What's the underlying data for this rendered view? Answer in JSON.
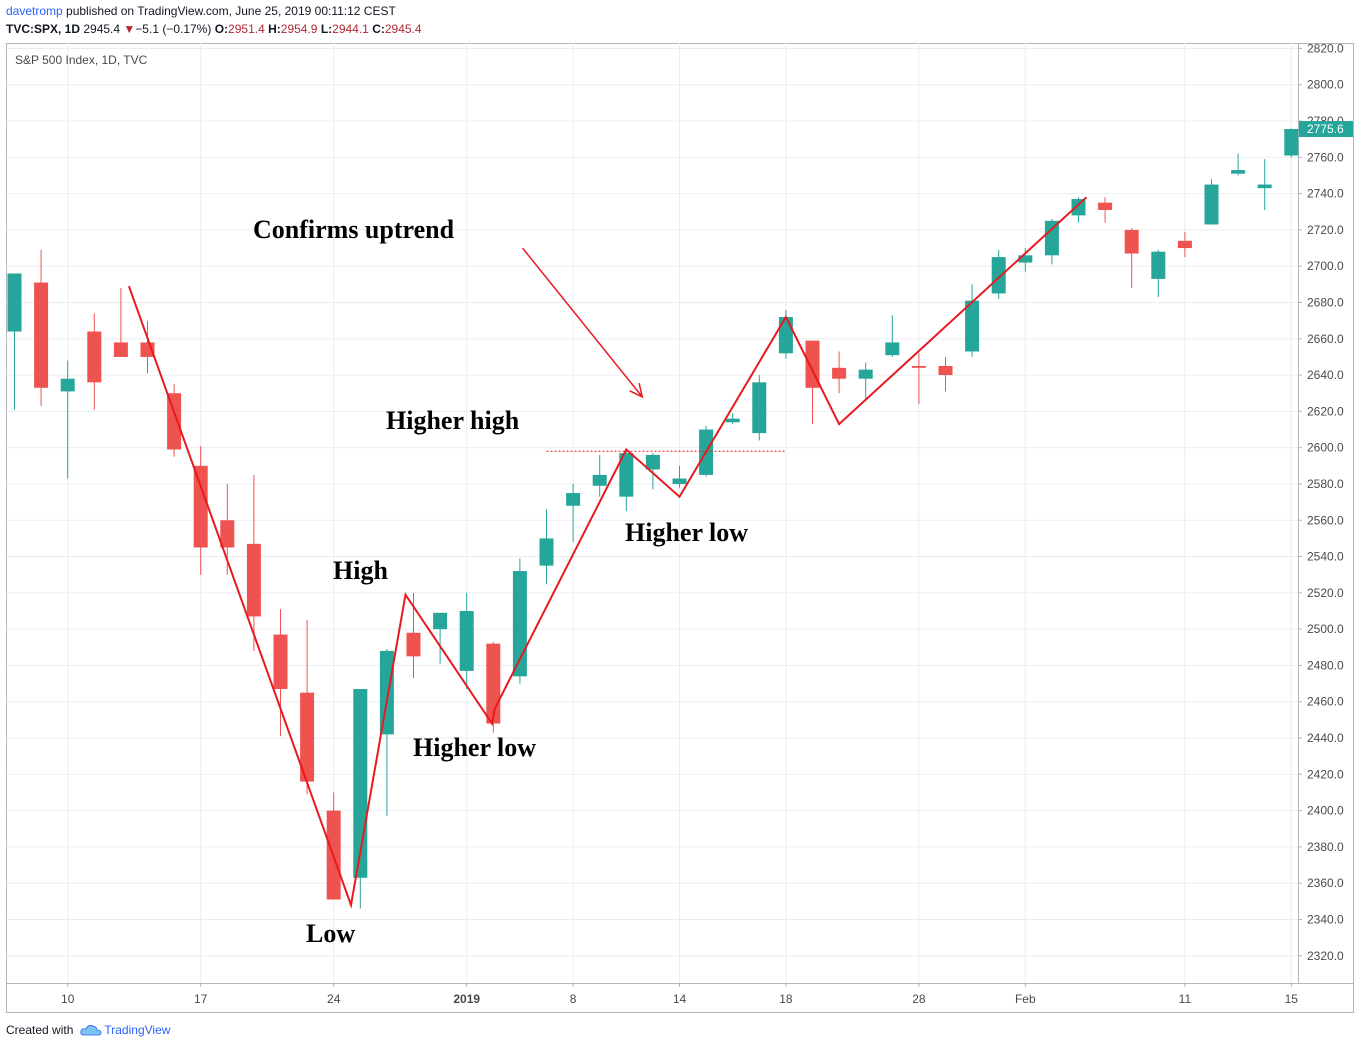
{
  "header": {
    "user": "davetromp",
    "published": " published on TradingView.com, June 25, 2019 00:11:12 CEST",
    "symbol": "TVC:SPX, 1D",
    "last": "2945.4",
    "arrow": "▼",
    "change": "−5.1 (−0.17%)",
    "o_label": "O:",
    "o_value": "2951.4",
    "h_label": "H:",
    "h_value": "2954.9",
    "l_label": "L:",
    "l_value": "2944.1",
    "c_label": "C:",
    "c_value": "2945.4"
  },
  "footer": {
    "created_with": "Created with",
    "brand": "TradingView"
  },
  "colors": {
    "up": "#26a69a",
    "down": "#ef5350",
    "annotation": "#e8191f",
    "grid": "#e9edf3",
    "axis_text": "#4a4a4a"
  },
  "chart_data": {
    "type": "candlestick",
    "title": "S&P 500 Index, 1D, TVC",
    "ylim": [
      2305,
      2823
    ],
    "y_ticks": [
      2320,
      2340,
      2360,
      2380,
      2400,
      2420,
      2440,
      2460,
      2480,
      2500,
      2520,
      2540,
      2560,
      2580,
      2600,
      2620,
      2640,
      2660,
      2680,
      2700,
      2720,
      2740,
      2760,
      2780,
      2800,
      2820
    ],
    "y_tick_labels": [
      "2320.0",
      "2340.0",
      "2360.0",
      "2380.0",
      "2400.0",
      "2420.0",
      "2440.0",
      "2460.0",
      "2480.0",
      "2500.0",
      "2520.0",
      "2540.0",
      "2560.0",
      "2580.0",
      "2600.0",
      "2620.0",
      "2640.0",
      "2660.0",
      "2680.0",
      "2700.0",
      "2720.0",
      "2740.0",
      "2760.0",
      "2780.0",
      "2800.0",
      "2820.0"
    ],
    "last_price_label": "2775.6",
    "last_price": 2775.6,
    "x_ticks": [
      {
        "index": 2,
        "label": "10"
      },
      {
        "index": 7,
        "label": "17"
      },
      {
        "index": 12,
        "label": "24"
      },
      {
        "index": 17,
        "label": "2019",
        "bold": true
      },
      {
        "index": 21,
        "label": "8"
      },
      {
        "index": 25,
        "label": "14"
      },
      {
        "index": 29,
        "label": "18"
      },
      {
        "index": 34,
        "label": "28"
      },
      {
        "index": 38,
        "label": "Feb"
      },
      {
        "index": 44,
        "label": "11"
      },
      {
        "index": 48,
        "label": "15"
      }
    ],
    "candles": [
      {
        "o": 2664,
        "h": 2696,
        "l": 2621,
        "c": 2696
      },
      {
        "o": 2691,
        "h": 2709,
        "l": 2623,
        "c": 2633
      },
      {
        "o": 2631,
        "h": 2648,
        "l": 2583,
        "c": 2638
      },
      {
        "o": 2664,
        "h": 2674,
        "l": 2621,
        "c": 2636
      },
      {
        "o": 2658,
        "h": 2688,
        "l": 2650,
        "c": 2650
      },
      {
        "o": 2658,
        "h": 2670,
        "l": 2641,
        "c": 2650
      },
      {
        "o": 2630,
        "h": 2635,
        "l": 2595,
        "c": 2599
      },
      {
        "o": 2590,
        "h": 2601,
        "l": 2530,
        "c": 2545
      },
      {
        "o": 2560,
        "h": 2580,
        "l": 2530,
        "c": 2545
      },
      {
        "o": 2547,
        "h": 2585,
        "l": 2488,
        "c": 2507
      },
      {
        "o": 2497,
        "h": 2511,
        "l": 2441,
        "c": 2467
      },
      {
        "o": 2465,
        "h": 2505,
        "l": 2409,
        "c": 2416
      },
      {
        "o": 2400,
        "h": 2410,
        "l": 2351,
        "c": 2351
      },
      {
        "o": 2363,
        "h": 2467,
        "l": 2346,
        "c": 2467
      },
      {
        "o": 2442,
        "h": 2489,
        "l": 2397,
        "c": 2488
      },
      {
        "o": 2498,
        "h": 2520,
        "l": 2473,
        "c": 2485
      },
      {
        "o": 2500,
        "h": 2509,
        "l": 2481,
        "c": 2509
      },
      {
        "o": 2477,
        "h": 2520,
        "l": 2467,
        "c": 2510
      },
      {
        "o": 2492,
        "h": 2493,
        "l": 2443,
        "c": 2448
      },
      {
        "o": 2474,
        "h": 2539,
        "l": 2470,
        "c": 2532
      },
      {
        "o": 2535,
        "h": 2566,
        "l": 2525,
        "c": 2550
      },
      {
        "o": 2568,
        "h": 2580,
        "l": 2548,
        "c": 2575
      },
      {
        "o": 2579,
        "h": 2596,
        "l": 2573,
        "c": 2585
      },
      {
        "o": 2573,
        "h": 2598,
        "l": 2565,
        "c": 2597
      },
      {
        "o": 2588,
        "h": 2597,
        "l": 2577,
        "c": 2596
      },
      {
        "o": 2580,
        "h": 2590,
        "l": 2578,
        "c": 2583
      },
      {
        "o": 2585,
        "h": 2612,
        "l": 2584,
        "c": 2610
      },
      {
        "o": 2614,
        "h": 2619,
        "l": 2613,
        "c": 2616
      },
      {
        "o": 2608,
        "h": 2640,
        "l": 2604,
        "c": 2636
      },
      {
        "o": 2652,
        "h": 2676,
        "l": 2649,
        "c": 2672
      },
      {
        "o": 2659,
        "h": 2659,
        "l": 2613,
        "c": 2633
      },
      {
        "o": 2644,
        "h": 2653,
        "l": 2630,
        "c": 2638
      },
      {
        "o": 2638,
        "h": 2647,
        "l": 2626,
        "c": 2643
      },
      {
        "o": 2651,
        "h": 2673,
        "l": 2650,
        "c": 2658
      },
      {
        "o": 2645,
        "h": 2652,
        "l": 2624,
        "c": 2644
      },
      {
        "o": 2645,
        "h": 2650,
        "l": 2631,
        "c": 2640
      },
      {
        "o": 2653,
        "h": 2690,
        "l": 2650,
        "c": 2681
      },
      {
        "o": 2685,
        "h": 2709,
        "l": 2682,
        "c": 2705
      },
      {
        "o": 2702,
        "h": 2710,
        "l": 2697,
        "c": 2706
      },
      {
        "o": 2706,
        "h": 2726,
        "l": 2701,
        "c": 2725
      },
      {
        "o": 2728,
        "h": 2738,
        "l": 2724,
        "c": 2737
      },
      {
        "o": 2735,
        "h": 2738,
        "l": 2724,
        "c": 2731
      },
      {
        "o": 2720,
        "h": 2721,
        "l": 2688,
        "c": 2707
      },
      {
        "o": 2693,
        "h": 2709,
        "l": 2683,
        "c": 2708
      },
      {
        "o": 2714,
        "h": 2719,
        "l": 2705,
        "c": 2710
      },
      {
        "o": 2723,
        "h": 2748,
        "l": 2723,
        "c": 2745
      },
      {
        "o": 2751,
        "h": 2762,
        "l": 2750,
        "c": 2753
      },
      {
        "o": 2743,
        "h": 2759,
        "l": 2731,
        "c": 2745
      },
      {
        "o": 2761,
        "h": 2776,
        "l": 2760,
        "c": 2775.6
      }
    ],
    "annotations": {
      "confirms_uptrend": "Confirms uptrend",
      "higher_high": "Higher high",
      "high": "High",
      "higher_low_1": "Higher low",
      "higher_low_2": "Higher low",
      "low": "Low"
    },
    "trend_line": [
      {
        "i": 4.3,
        "v": 2689
      },
      {
        "i": 12.65,
        "v": 2348
      },
      {
        "i": 14.7,
        "v": 2519
      },
      {
        "i": 17.95,
        "v": 2448
      },
      {
        "i": 18.05,
        "v": 2456
      },
      {
        "i": 23.0,
        "v": 2599
      },
      {
        "i": 25.0,
        "v": 2573
      },
      {
        "i": 29.0,
        "v": 2672
      },
      {
        "i": 31.0,
        "v": 2613
      },
      {
        "i": 40.3,
        "v": 2738
      }
    ],
    "resistance_line": {
      "v": 2598,
      "from": 20.0,
      "to": 29.0
    },
    "arrow": {
      "from_i": 19.1,
      "from_v": 2710,
      "to_i": 23.6,
      "to_v": 2628
    }
  }
}
